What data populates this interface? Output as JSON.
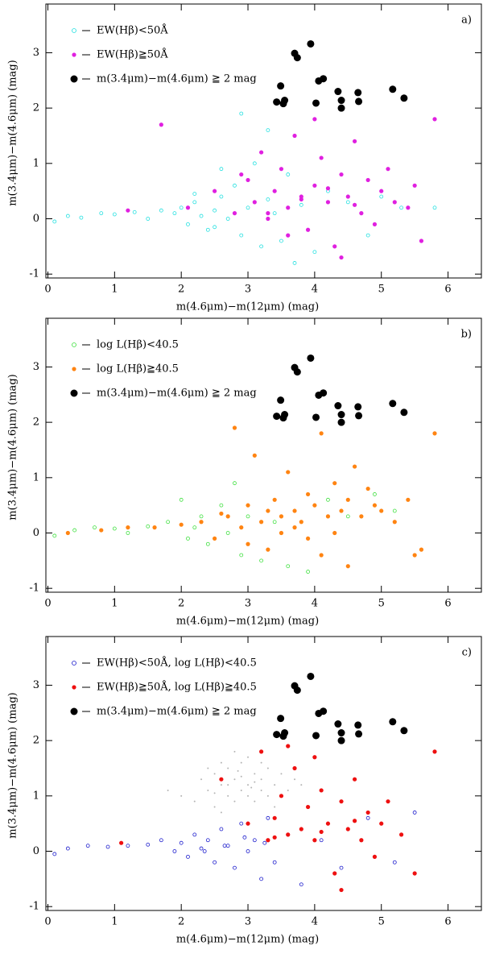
{
  "chart_data": [
    {
      "type": "scatter",
      "annotation": "a)",
      "xlabel": "m(4.6μm)−m(12μm) (mag)",
      "ylabel": "m(3.4μm)−m(4.6μm) (mag)",
      "xlim": [
        -0.03,
        6.5
      ],
      "ylim": [
        -1.07,
        3.88
      ],
      "xticks": [
        0,
        1,
        2,
        3,
        4,
        5,
        6
      ],
      "yticks": [
        -1,
        0,
        1,
        2,
        3
      ],
      "series": [
        {
          "name": "EW(Hβ)<50Å",
          "color": "#22e0e0",
          "marker": "open",
          "size": 2,
          "x": [
            0.1,
            0.3,
            0.5,
            0.8,
            1.0,
            1.3,
            1.5,
            1.7,
            1.9,
            2.0,
            2.1,
            2.2,
            2.3,
            2.4,
            2.5,
            2.6,
            2.7,
            2.8,
            2.9,
            3.0,
            3.1,
            3.2,
            3.3,
            3.4,
            3.5,
            3.6,
            3.8,
            4.0,
            4.2,
            4.5,
            4.8,
            5.0,
            5.3,
            5.8,
            2.9,
            3.3,
            2.6,
            3.7,
            2.2,
            2.5
          ],
          "y": [
            -0.05,
            0.05,
            0.02,
            0.1,
            0.08,
            0.12,
            0.0,
            0.15,
            0.1,
            0.2,
            -0.1,
            0.3,
            0.05,
            -0.2,
            0.15,
            0.4,
            0.0,
            0.6,
            -0.3,
            0.2,
            1.0,
            -0.5,
            0.35,
            0.1,
            -0.4,
            0.8,
            0.25,
            -0.6,
            0.5,
            0.3,
            -0.3,
            0.4,
            0.2,
            0.2,
            1.9,
            1.6,
            0.9,
            -0.8,
            0.45,
            -0.15
          ]
        },
        {
          "name": "EW(Hβ)≧50Å",
          "color": "#e020e0",
          "marker": "filled",
          "size": 2.6,
          "x": [
            1.2,
            1.7,
            2.1,
            2.5,
            2.8,
            3.0,
            3.1,
            3.2,
            3.3,
            3.4,
            3.5,
            3.6,
            3.7,
            3.8,
            3.9,
            4.0,
            4.1,
            4.2,
            4.3,
            4.4,
            4.5,
            4.6,
            4.7,
            4.8,
            4.9,
            5.0,
            5.1,
            5.2,
            5.4,
            5.6,
            5.8,
            3.6,
            4.0,
            4.4,
            3.8,
            4.2,
            4.6,
            3.3,
            2.9,
            5.5
          ],
          "y": [
            0.15,
            1.7,
            0.2,
            0.5,
            0.1,
            0.7,
            0.3,
            1.2,
            0.0,
            0.5,
            0.9,
            0.2,
            1.5,
            0.4,
            -0.2,
            0.6,
            1.1,
            0.3,
            -0.5,
            0.8,
            0.4,
            1.4,
            0.1,
            0.7,
            -0.1,
            0.5,
            0.9,
            0.3,
            0.2,
            -0.4,
            1.8,
            -0.3,
            1.8,
            -0.7,
            0.35,
            0.55,
            0.25,
            0.1,
            0.8,
            0.6
          ]
        },
        {
          "name": "m(3.4μm)−m(4.6μm) ≧ 2 mag",
          "color": "#000000",
          "marker": "filled",
          "size": 4.5,
          "x": [
            3.43,
            3.49,
            3.53,
            3.55,
            3.7,
            3.74,
            3.94,
            4.02,
            4.06,
            4.13,
            4.35,
            4.4,
            4.4,
            4.65,
            4.66,
            5.17,
            5.34
          ],
          "y": [
            2.11,
            2.4,
            2.08,
            2.14,
            2.99,
            2.91,
            3.16,
            2.09,
            2.49,
            2.53,
            2.3,
            2.14,
            2.0,
            2.28,
            2.12,
            2.34,
            2.18
          ]
        }
      ]
    },
    {
      "type": "scatter",
      "annotation": "b)",
      "xlabel": "m(4.6μm)−m(12μm) (mag)",
      "ylabel": "m(3.4μm)−m(4.6μm) (mag)",
      "xlim": [
        -0.03,
        6.5
      ],
      "ylim": [
        -1.07,
        3.88
      ],
      "xticks": [
        0,
        1,
        2,
        3,
        4,
        5,
        6
      ],
      "yticks": [
        -1,
        0,
        1,
        2,
        3
      ],
      "series": [
        {
          "name": "log L(Hβ)<40.5",
          "color": "#3ee03e",
          "marker": "open",
          "size": 2,
          "x": [
            0.1,
            0.4,
            0.7,
            1.0,
            1.2,
            1.5,
            1.8,
            2.0,
            2.1,
            2.3,
            2.4,
            2.6,
            2.7,
            2.9,
            3.0,
            3.2,
            3.4,
            3.6,
            3.9,
            4.2,
            4.5,
            4.9,
            5.2,
            2.2,
            2.8
          ],
          "y": [
            -0.05,
            0.05,
            0.1,
            0.08,
            0.0,
            0.12,
            0.2,
            0.6,
            -0.1,
            0.3,
            -0.2,
            0.5,
            0.0,
            -0.4,
            0.3,
            -0.5,
            0.2,
            -0.6,
            -0.7,
            0.6,
            0.3,
            0.7,
            0.4,
            0.1,
            0.9
          ]
        },
        {
          "name": "log L(Hβ)≧40.5",
          "color": "#ff8412",
          "marker": "filled",
          "size": 2.6,
          "x": [
            0.3,
            0.8,
            1.2,
            1.6,
            2.0,
            2.3,
            2.5,
            2.7,
            2.8,
            2.9,
            3.0,
            3.1,
            3.2,
            3.3,
            3.4,
            3.5,
            3.6,
            3.7,
            3.8,
            3.9,
            4.0,
            4.1,
            4.2,
            4.3,
            4.4,
            4.5,
            4.6,
            4.7,
            4.8,
            4.9,
            5.0,
            5.2,
            5.4,
            5.6,
            5.8,
            3.3,
            3.7,
            4.1,
            4.5,
            3.0,
            3.5,
            3.9,
            4.3,
            2.6,
            5.5
          ],
          "y": [
            0.0,
            0.05,
            0.1,
            0.1,
            0.15,
            0.2,
            -0.1,
            0.3,
            1.9,
            0.1,
            0.5,
            1.4,
            0.2,
            -0.3,
            0.6,
            0.3,
            1.1,
            0.4,
            0.2,
            0.7,
            0.5,
            1.8,
            0.3,
            0.9,
            0.4,
            0.6,
            1.2,
            0.3,
            0.8,
            0.5,
            0.4,
            0.2,
            0.6,
            -0.3,
            1.8,
            0.4,
            0.1,
            -0.4,
            -0.6,
            -0.2,
            0.0,
            -0.1,
            0.0,
            0.35,
            -0.4
          ]
        },
        {
          "name": "m(3.4μm)−m(4.6μm) ≧ 2 mag",
          "color": "#000000",
          "marker": "filled",
          "size": 4.5,
          "x": [
            3.43,
            3.49,
            3.53,
            3.55,
            3.7,
            3.74,
            3.94,
            4.02,
            4.06,
            4.13,
            4.35,
            4.4,
            4.4,
            4.65,
            4.66,
            5.17,
            5.34
          ],
          "y": [
            2.11,
            2.4,
            2.08,
            2.14,
            2.99,
            2.91,
            3.16,
            2.09,
            2.49,
            2.53,
            2.3,
            2.14,
            2.0,
            2.28,
            2.12,
            2.34,
            2.18
          ]
        }
      ]
    },
    {
      "type": "scatter",
      "annotation": "c)",
      "xlabel": "m(4.6μm)−m(12μm) (mag)",
      "ylabel": "m(3.4μm)−m(4.6μm) (mag)",
      "xlim": [
        -0.03,
        6.5
      ],
      "ylim": [
        -1.07,
        3.88
      ],
      "xticks": [
        0,
        1,
        2,
        3,
        4,
        5,
        6
      ],
      "yticks": [
        -1,
        0,
        1,
        2,
        3
      ],
      "series": [
        {
          "color": "#b4b4b4",
          "marker": "filled",
          "size": 1,
          "x": [
            2.0,
            2.2,
            2.3,
            2.4,
            2.5,
            2.5,
            2.6,
            2.6,
            2.7,
            2.7,
            2.8,
            2.8,
            2.9,
            2.9,
            3.0,
            3.0,
            3.1,
            3.1,
            3.2,
            3.2,
            3.3,
            3.3,
            3.4,
            3.5,
            3.6,
            3.7,
            2.4,
            2.6,
            2.8,
            3.0,
            3.2,
            3.4,
            2.7,
            2.9,
            3.1,
            2.5,
            2.85,
            3.05,
            1.8,
            3.8
          ],
          "y": [
            1.0,
            0.9,
            1.3,
            1.1,
            0.8,
            1.4,
            1.2,
            1.6,
            1.0,
            1.5,
            1.3,
            1.8,
            1.1,
            1.6,
            1.2,
            1.7,
            0.9,
            1.4,
            1.3,
            1.1,
            1.5,
            1.0,
            1.2,
            1.4,
            1.1,
            1.3,
            1.5,
            0.7,
            0.9,
            1.0,
            1.6,
            0.8,
            1.2,
            1.35,
            1.25,
            1.05,
            1.45,
            1.15,
            1.1,
            1.2
          ]
        },
        {
          "name": "EW(Hβ)<50Å, log L(Hβ)<40.5",
          "color": "#1a1acc",
          "marker": "open",
          "size": 2,
          "x": [
            0.1,
            0.3,
            0.6,
            0.9,
            1.2,
            1.5,
            1.7,
            1.9,
            2.0,
            2.1,
            2.2,
            2.3,
            2.4,
            2.5,
            2.6,
            2.7,
            2.8,
            2.9,
            3.0,
            3.1,
            3.2,
            3.3,
            3.4,
            3.6,
            3.8,
            4.1,
            4.4,
            4.8,
            5.2,
            5.5,
            2.35,
            2.65,
            2.95,
            3.25
          ],
          "y": [
            -0.05,
            0.05,
            0.1,
            0.08,
            0.1,
            0.12,
            0.2,
            0.0,
            0.15,
            -0.1,
            0.3,
            0.05,
            0.2,
            -0.2,
            0.4,
            0.1,
            -0.3,
            0.5,
            0.0,
            0.2,
            -0.5,
            0.6,
            -0.2,
            0.3,
            -0.6,
            0.2,
            -0.3,
            0.6,
            -0.2,
            0.7,
            0.0,
            0.1,
            0.25,
            0.15
          ]
        },
        {
          "name": "EW(Hβ)≧50Å, log L(Hβ)≧40.5",
          "color": "#ee1010",
          "marker": "filled",
          "size": 2.6,
          "x": [
            1.1,
            2.6,
            3.0,
            3.2,
            3.3,
            3.4,
            3.5,
            3.6,
            3.7,
            3.8,
            3.9,
            4.0,
            4.1,
            4.2,
            4.3,
            4.4,
            4.5,
            4.6,
            4.7,
            4.8,
            4.9,
            5.0,
            5.1,
            5.3,
            5.5,
            5.8,
            3.6,
            4.0,
            4.4,
            4.1,
            4.6,
            3.4
          ],
          "y": [
            0.15,
            1.3,
            0.5,
            1.8,
            0.2,
            0.6,
            1.0,
            0.3,
            1.5,
            0.4,
            0.8,
            0.2,
            1.1,
            0.5,
            -0.4,
            0.9,
            0.4,
            1.3,
            0.2,
            0.7,
            -0.1,
            0.5,
            0.9,
            0.3,
            -0.4,
            1.8,
            1.9,
            1.7,
            -0.7,
            0.35,
            0.55,
            0.25
          ]
        },
        {
          "name": "m(3.4μm)−m(4.6μm) ≧ 2 mag",
          "color": "#000000",
          "marker": "filled",
          "size": 4.5,
          "x": [
            3.43,
            3.49,
            3.53,
            3.55,
            3.7,
            3.74,
            3.94,
            4.02,
            4.06,
            4.13,
            4.35,
            4.4,
            4.4,
            4.65,
            4.66,
            5.17,
            5.34
          ],
          "y": [
            2.11,
            2.4,
            2.08,
            2.14,
            2.99,
            2.91,
            3.16,
            2.09,
            2.49,
            2.53,
            2.3,
            2.14,
            2.0,
            2.28,
            2.12,
            2.34,
            2.18
          ]
        }
      ]
    }
  ]
}
